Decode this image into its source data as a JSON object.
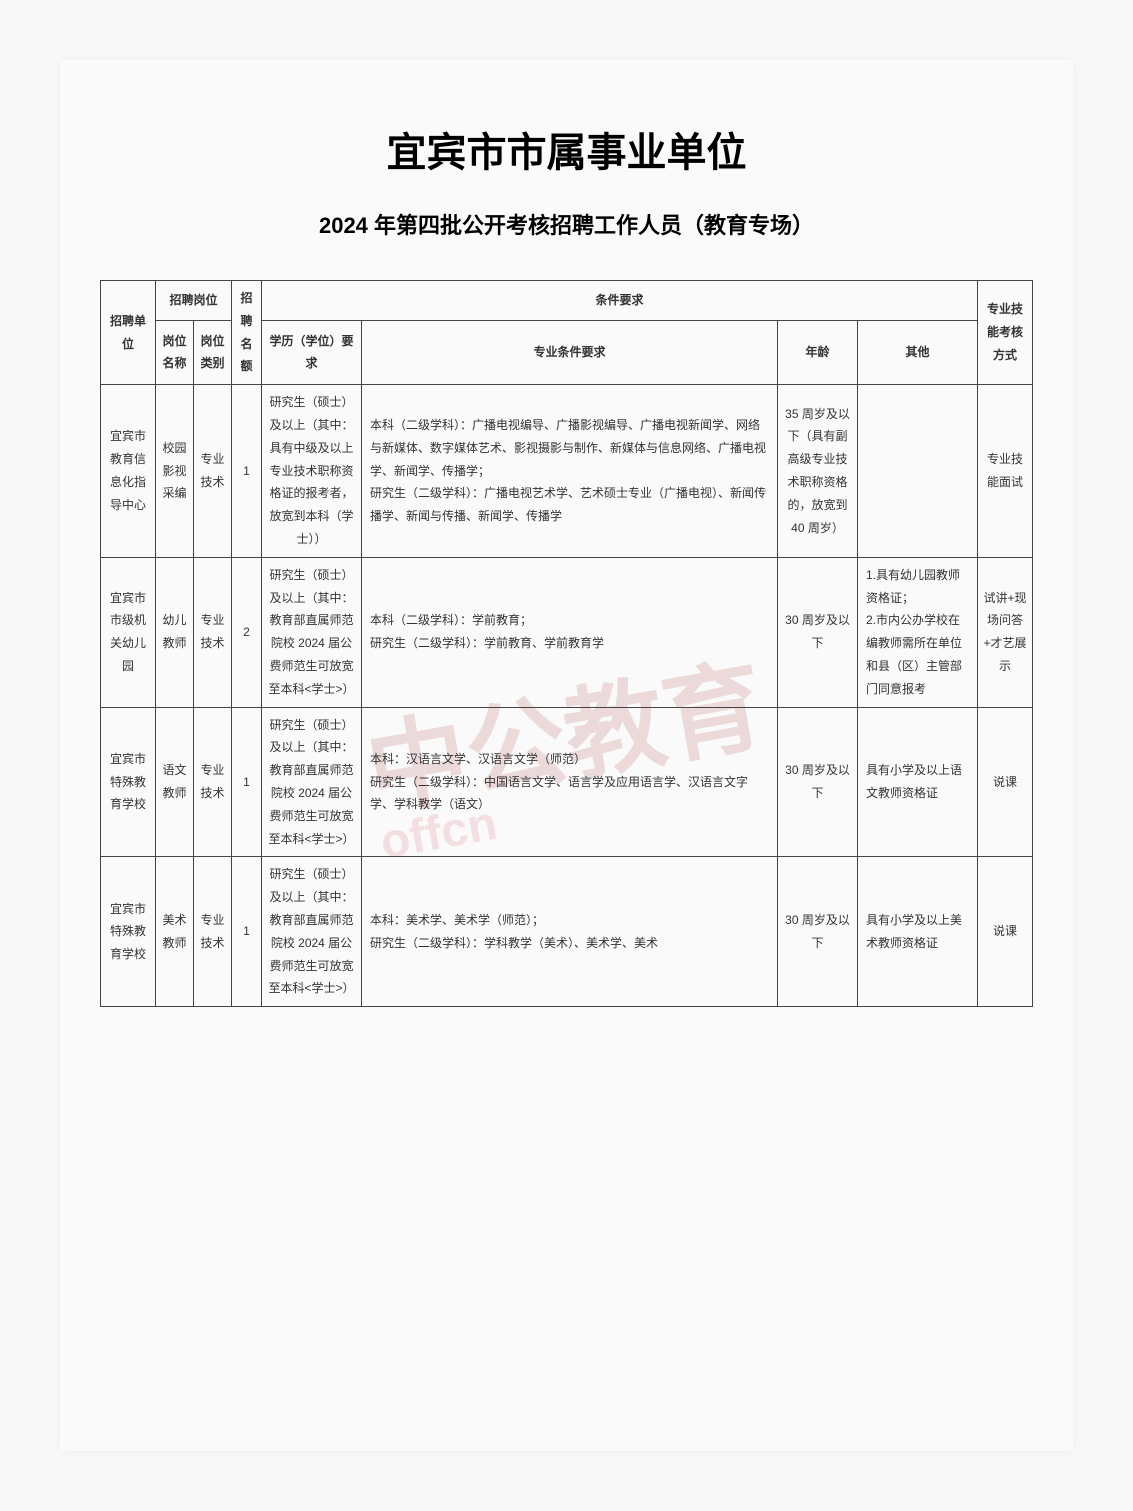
{
  "main_title": "宜宾市市属事业单位",
  "sub_title": "2024 年第四批公开考核招聘工作人员（教育专场）",
  "watermark_main": "中公教育",
  "watermark_sub": "offcn",
  "headers": {
    "group_position": "招聘岗位",
    "group_requirements": "条件要求",
    "unit": "招聘单位",
    "position_name": "岗位名称",
    "position_type": "岗位类别",
    "count": "招聘名额",
    "education": "学历（学位）要求",
    "major": "专业条件要求",
    "age": "年龄",
    "other": "其他",
    "exam_method": "专业技能考核方式"
  },
  "rows": [
    {
      "unit": "宜宾市教育信息化指导中心",
      "position_name": "校园影视采编",
      "position_type": "专业技术",
      "count": "1",
      "education": "研究生（硕士）及以上（其中：具有中级及以上专业技术职称资格证的报考者，放宽到本科（学士））",
      "major": "本科（二级学科）：广播电视编导、广播影视编导、广播电视新闻学、网络与新媒体、数字媒体艺术、影视摄影与制作、新媒体与信息网络、广播电视学、新闻学、传播学；\n研究生（二级学科）：广播电视艺术学、艺术硕士专业（广播电视）、新闻传播学、新闻与传播、新闻学、传播学",
      "age": "35 周岁及以下（具有副高级专业技术职称资格的，放宽到 40 周岁）",
      "other": "",
      "exam_method": "专业技能面试"
    },
    {
      "unit": "宜宾市市级机关幼儿园",
      "position_name": "幼儿教师",
      "position_type": "专业技术",
      "count": "2",
      "education": "研究生（硕士）及以上（其中：教育部直属师范院校 2024 届公费师范生可放宽至本科<学士>）",
      "major": "本科（二级学科）：学前教育；\n研究生（二级学科）：学前教育、学前教育学",
      "age": "30 周岁及以下",
      "other": "1.具有幼儿园教师资格证；\n2.市内公办学校在编教师需所在单位和县（区）主管部门同意报考",
      "exam_method": "试讲+现场问答+才艺展示"
    },
    {
      "unit": "宜宾市特殊教育学校",
      "position_name": "语文教师",
      "position_type": "专业技术",
      "count": "1",
      "education": "研究生（硕士）及以上（其中：教育部直属师范院校 2024 届公费师范生可放宽至本科<学士>）",
      "major": "本科：汉语言文学、汉语言文学（师范）\n研究生（二级学科）：中国语言文学、语言学及应用语言学、汉语言文字学、学科教学（语文）",
      "age": "30 周岁及以下",
      "other": "具有小学及以上语文教师资格证",
      "exam_method": "说课"
    },
    {
      "unit": "宜宾市特殊教育学校",
      "position_name": "美术教师",
      "position_type": "专业技术",
      "count": "1",
      "education": "研究生（硕士）及以上（其中：教育部直属师范院校 2024 届公费师范生可放宽至本科<学士>）",
      "major": "本科：美术学、美术学（师范）；\n研究生（二级学科）：学科教学（美术）、美术学、美术",
      "age": "30 周岁及以下",
      "other": "具有小学及以上美术教师资格证",
      "exam_method": "说课"
    }
  ]
}
